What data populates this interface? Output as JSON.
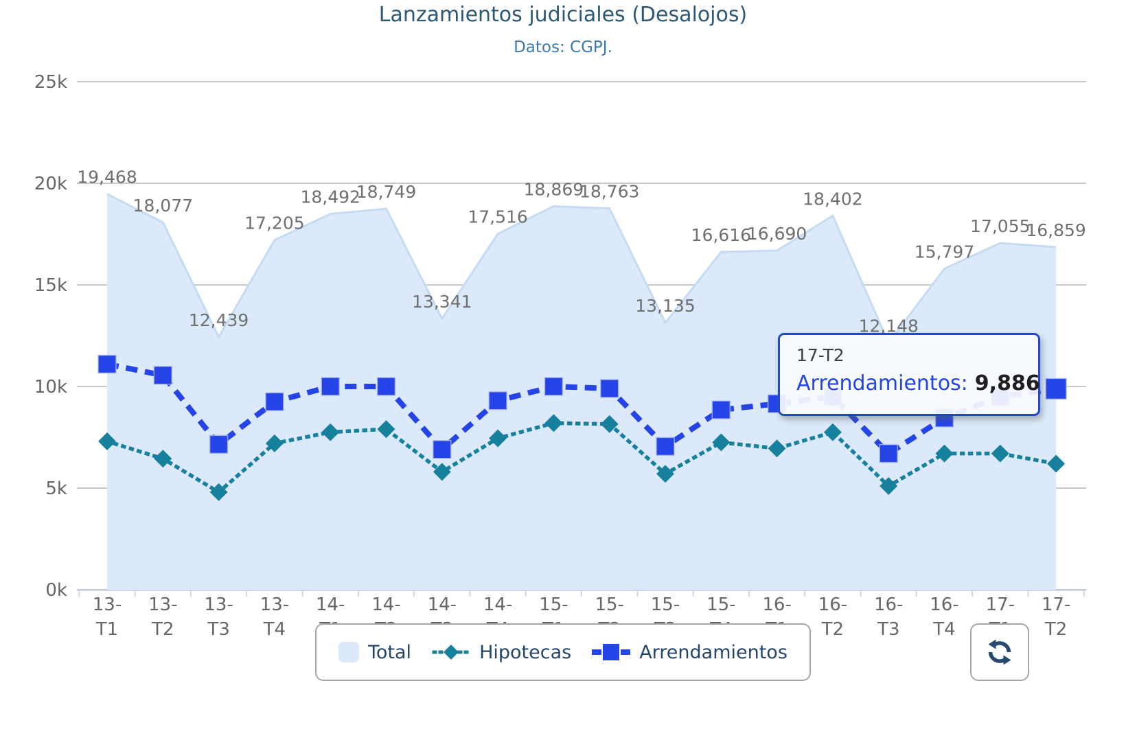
{
  "header": {
    "title": "Lanzamientos judiciales (Desalojos)",
    "subtitle": "Datos: CGPJ."
  },
  "chart_data": {
    "type": "area",
    "title": "Lanzamientos judiciales (Desalojos)",
    "subtitle": "Datos: CGPJ.",
    "categories": [
      "13-T1",
      "13-T2",
      "13-T3",
      "13-T4",
      "14-T1",
      "14-T2",
      "14-T3",
      "14-T4",
      "15-T1",
      "15-T2",
      "15-T3",
      "15-T4",
      "16-T1",
      "16-T2",
      "16-T3",
      "16-T4",
      "17-T1",
      "17-T2"
    ],
    "series": [
      {
        "name": "Total",
        "type": "area",
        "color": "#dbe9fb",
        "edge_color": "#c5dbf4",
        "data_labels": true,
        "values": [
          19468,
          18077,
          12439,
          17205,
          18492,
          18749,
          13341,
          17516,
          18869,
          18763,
          13135,
          16616,
          16690,
          18402,
          12148,
          15797,
          17055,
          16859
        ]
      },
      {
        "name": "Hipotecas",
        "type": "line",
        "style": "dotted",
        "marker": "diamond",
        "color": "#17819d",
        "values": [
          7300,
          6450,
          4800,
          7200,
          7750,
          7900,
          5800,
          7450,
          8200,
          8150,
          5700,
          7250,
          6950,
          7750,
          5100,
          6700,
          6700,
          6200
        ]
      },
      {
        "name": "Arrendamientos",
        "type": "line",
        "style": "dashed",
        "marker": "square",
        "color": "#2544e8",
        "values": [
          11100,
          10550,
          7150,
          9250,
          10000,
          10000,
          6900,
          9300,
          10000,
          9900,
          7050,
          8850,
          9150,
          9500,
          6700,
          8450,
          9500,
          9886
        ]
      }
    ],
    "ylim": [
      0,
      25000
    ],
    "ytick_labels": [
      "0k",
      "5k",
      "10k",
      "15k",
      "20k",
      "25k"
    ],
    "grid": true,
    "grid_color": "#c7c7c7",
    "axis_line_color": "#ccd6eb",
    "axis_text_color": "#666666",
    "data_label_color": "#6f6f6f",
    "legend_position": "bottom"
  },
  "tooltip": {
    "category": "17-T2",
    "series_label": "Arrendamientos:",
    "value": "9,886",
    "border_color": "#2148c8"
  },
  "legend": {
    "items": [
      {
        "label": "Total"
      },
      {
        "label": "Hipotecas"
      },
      {
        "label": "Arrendamientos"
      }
    ]
  },
  "toolbar": {
    "icon_color": "#27496d"
  }
}
